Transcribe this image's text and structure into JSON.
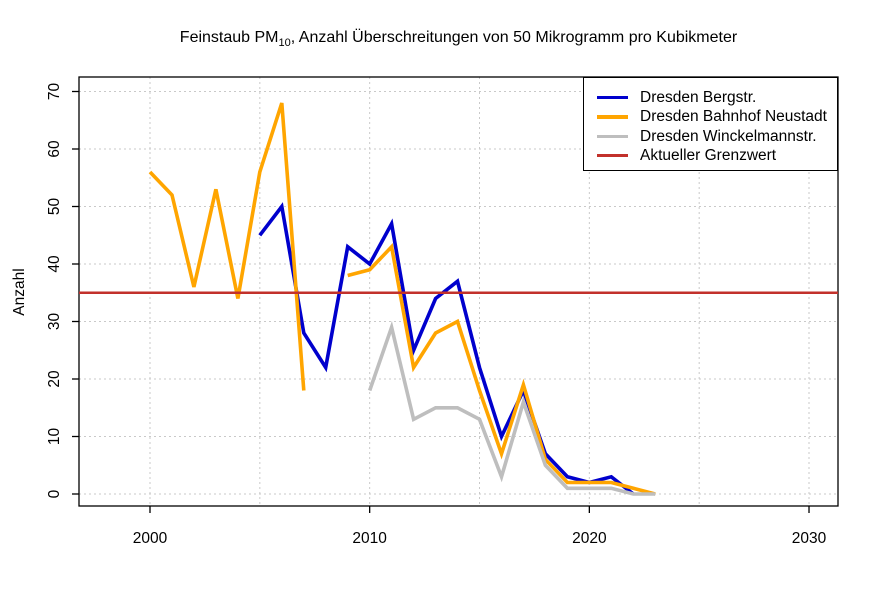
{
  "title": {
    "prefix": "Feinstaub PM",
    "subscript": "10",
    "suffix": ", Anzahl Überschreitungen von 50 Mikrogramm pro Kubikmeter"
  },
  "chart_data": {
    "type": "line",
    "title": "Feinstaub PM10, Anzahl Überschreitungen von 50 Mikrogramm pro Kubikmeter",
    "xlabel": "",
    "ylabel": "Anzahl",
    "grid": true,
    "legend_position": "topright",
    "xlim": [
      1996.8,
      2031.3
    ],
    "ylim": [
      -2.1,
      72.5
    ],
    "x_ticks": [
      2000,
      2010,
      2020,
      2030
    ],
    "x_gridlines": [
      2000,
      2005,
      2010,
      2015,
      2020,
      2025,
      2030
    ],
    "y_ticks": [
      0,
      10,
      20,
      30,
      40,
      50,
      60,
      70
    ],
    "series": [
      {
        "name": "Dresden Bergstr.",
        "color": "#0000cd",
        "line_width": 3.6,
        "points": [
          [
            2005,
            45
          ],
          [
            2006,
            50
          ],
          [
            2007,
            28
          ],
          [
            2008,
            22
          ],
          [
            2009,
            43
          ],
          [
            2010,
            40
          ],
          [
            2011,
            47
          ],
          [
            2012,
            25
          ],
          [
            2013,
            34
          ],
          [
            2014,
            37
          ],
          [
            2015,
            22
          ],
          [
            2016,
            10
          ],
          [
            2017,
            18
          ],
          [
            2018,
            7
          ],
          [
            2019,
            3
          ],
          [
            2020,
            2
          ],
          [
            2021,
            3
          ],
          [
            2022,
            0
          ]
        ]
      },
      {
        "name": "Dresden Bahnhof Neustadt",
        "color": "#ffa500",
        "line_width": 3.6,
        "points": [
          [
            2000,
            56
          ],
          [
            2001,
            52
          ],
          [
            2002,
            36
          ],
          [
            2003,
            53
          ],
          [
            2004,
            34
          ],
          [
            2005,
            56
          ],
          [
            2006,
            68
          ],
          [
            2007,
            18
          ],
          [
            2008,
            null
          ],
          [
            2009,
            38
          ],
          [
            2010,
            39
          ],
          [
            2011,
            43
          ],
          [
            2012,
            22
          ],
          [
            2013,
            28
          ],
          [
            2014,
            30
          ],
          [
            2015,
            18
          ],
          [
            2016,
            7
          ],
          [
            2017,
            19
          ],
          [
            2018,
            6
          ],
          [
            2019,
            2
          ],
          [
            2020,
            2
          ],
          [
            2021,
            2
          ],
          [
            2022,
            1
          ],
          [
            2023,
            0
          ]
        ]
      },
      {
        "name": "Dresden Winckelmannstr.",
        "color": "#bebebe",
        "line_width": 3.6,
        "points": [
          [
            2010,
            18
          ],
          [
            2011,
            29
          ],
          [
            2012,
            13
          ],
          [
            2013,
            15
          ],
          [
            2014,
            15
          ],
          [
            2015,
            13
          ],
          [
            2016,
            3
          ],
          [
            2017,
            16
          ],
          [
            2018,
            5
          ],
          [
            2019,
            1
          ],
          [
            2020,
            1
          ],
          [
            2021,
            1
          ],
          [
            2022,
            0
          ],
          [
            2023,
            0
          ]
        ]
      },
      {
        "name": "Aktueller Grenzwert",
        "color": "#c2312b",
        "line_width": 2.6,
        "hline": 35
      }
    ]
  },
  "colors": {
    "grid": "#c9c9c9",
    "axis": "#000000",
    "background": "#ffffff"
  }
}
